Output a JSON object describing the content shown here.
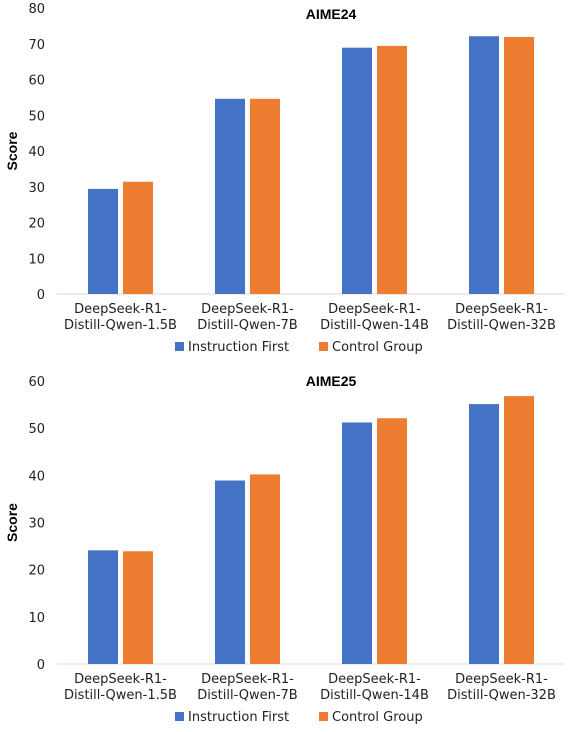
{
  "chart_data": [
    {
      "type": "bar",
      "title": "AIME24",
      "xlabel": "",
      "ylabel": "Score",
      "ylim": [
        0,
        80
      ],
      "yticks": [
        0,
        10,
        20,
        30,
        40,
        50,
        60,
        70,
        80
      ],
      "categories": [
        [
          "DeepSeek-R1-",
          "Distill-Qwen-1.5B"
        ],
        [
          "DeepSeek-R1-",
          "Distill-Qwen-7B"
        ],
        [
          "DeepSeek-R1-",
          "Distill-Qwen-14B"
        ],
        [
          "DeepSeek-R1-",
          "Distill-Qwen-32B"
        ]
      ],
      "series": [
        {
          "name": "Instruction First",
          "color": "#4472C4",
          "values": [
            29.4,
            54.6,
            68.9,
            72.1
          ]
        },
        {
          "name": "Control Group",
          "color": "#ED7D31",
          "values": [
            31.4,
            54.6,
            69.4,
            71.9
          ]
        }
      ],
      "grid": false,
      "legend_position": "bottom"
    },
    {
      "type": "bar",
      "title": "AIME25",
      "xlabel": "",
      "ylabel": "Score",
      "ylim": [
        0,
        60
      ],
      "yticks": [
        0,
        10,
        20,
        30,
        40,
        50,
        60
      ],
      "categories": [
        [
          "DeepSeek-R1-",
          "Distill-Qwen-1.5B"
        ],
        [
          "DeepSeek-R1-",
          "Distill-Qwen-7B"
        ],
        [
          "DeepSeek-R1-",
          "Distill-Qwen-14B"
        ],
        [
          "DeepSeek-R1-",
          "Distill-Qwen-32B"
        ]
      ],
      "series": [
        {
          "name": "Instruction First",
          "color": "#4472C4",
          "values": [
            24.1,
            38.9,
            51.2,
            55.1
          ]
        },
        {
          "name": "Control Group",
          "color": "#ED7D31",
          "values": [
            23.9,
            40.2,
            52.1,
            56.8
          ]
        }
      ],
      "grid": false,
      "legend_position": "bottom"
    }
  ]
}
